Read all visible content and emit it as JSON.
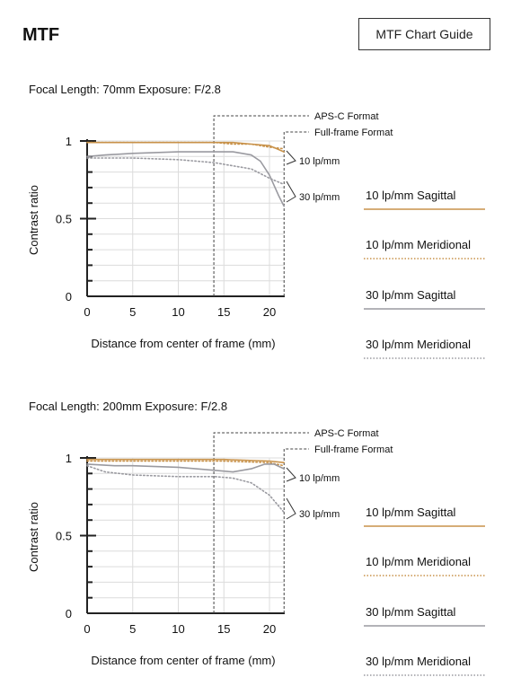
{
  "header": {
    "title": "MTF",
    "guide_button": "MTF Chart Guide"
  },
  "colors": {
    "sagittal10": "#c8924a",
    "meridional10": "#c8924a",
    "sagittal30": "#9a9aa0",
    "meridional30": "#9a9aa0"
  },
  "chart_data": [
    {
      "type": "line",
      "caption": "Focal Length: 70mm   Exposure: F/2.8",
      "xlabel": "Distance from center of frame (mm)",
      "ylabel": "Contrast ratio",
      "xlim": [
        0,
        21.6
      ],
      "ylim": [
        0,
        1
      ],
      "xticks": [
        "0",
        "5",
        "10",
        "15",
        "20"
      ],
      "yticks": [
        "0",
        "0.5",
        "1"
      ],
      "grid": true,
      "markers": [
        {
          "label": "APS-C Format",
          "x": 13.9
        },
        {
          "label": "Full-frame Format",
          "x": 21.6
        }
      ],
      "annotations": [
        "10 lp/mm",
        "30 lp/mm"
      ],
      "series": [
        {
          "name": "10 lp/mm Sagittal",
          "style": "solid",
          "color": "#c8924a",
          "x": [
            0,
            5,
            10,
            14,
            16,
            18,
            20,
            21.6
          ],
          "y": [
            0.99,
            0.99,
            0.99,
            0.99,
            0.99,
            0.98,
            0.97,
            0.93
          ]
        },
        {
          "name": "10 lp/mm Meridional",
          "style": "dotted",
          "color": "#c8924a",
          "x": [
            0,
            5,
            10,
            14,
            16,
            18,
            20,
            21.6
          ],
          "y": [
            0.99,
            0.99,
            0.99,
            0.99,
            0.98,
            0.98,
            0.96,
            0.95
          ]
        },
        {
          "name": "30 lp/mm Sagittal",
          "style": "solid",
          "color": "#9a9aa0",
          "x": [
            0,
            2,
            5,
            10,
            14,
            16,
            18,
            19,
            20,
            21,
            21.6
          ],
          "y": [
            0.9,
            0.91,
            0.92,
            0.93,
            0.93,
            0.93,
            0.91,
            0.87,
            0.78,
            0.65,
            0.58
          ]
        },
        {
          "name": "30 lp/mm Meridional",
          "style": "dotted",
          "color": "#9a9aa0",
          "x": [
            0,
            5,
            10,
            14,
            16,
            18,
            20,
            21.6
          ],
          "y": [
            0.89,
            0.89,
            0.88,
            0.86,
            0.84,
            0.82,
            0.76,
            0.72
          ]
        }
      ]
    },
    {
      "type": "line",
      "caption": "Focal Length: 200mm   Exposure: F/2.8",
      "xlabel": "Distance from center of frame (mm)",
      "ylabel": "Contrast ratio",
      "xlim": [
        0,
        21.6
      ],
      "ylim": [
        0,
        1
      ],
      "xticks": [
        "0",
        "5",
        "10",
        "15",
        "20"
      ],
      "yticks": [
        "0",
        "0.5",
        "1"
      ],
      "grid": true,
      "markers": [
        {
          "label": "APS-C Format",
          "x": 13.9
        },
        {
          "label": "Full-frame Format",
          "x": 21.6
        }
      ],
      "annotations": [
        "10 lp/mm",
        "30 lp/mm"
      ],
      "series": [
        {
          "name": "10 lp/mm Sagittal",
          "style": "solid",
          "color": "#c8924a",
          "x": [
            0,
            5,
            10,
            15,
            20,
            21.6
          ],
          "y": [
            0.99,
            0.99,
            0.99,
            0.99,
            0.98,
            0.97
          ]
        },
        {
          "name": "10 lp/mm Meridional",
          "style": "dotted",
          "color": "#c8924a",
          "x": [
            0,
            5,
            10,
            15,
            20,
            21.6
          ],
          "y": [
            0.98,
            0.98,
            0.98,
            0.98,
            0.97,
            0.95
          ]
        },
        {
          "name": "30 lp/mm Sagittal",
          "style": "solid",
          "color": "#9a9aa0",
          "x": [
            0,
            3,
            5,
            10,
            14,
            16,
            18,
            19.5,
            20.5,
            21.6
          ],
          "y": [
            0.96,
            0.95,
            0.95,
            0.94,
            0.92,
            0.91,
            0.93,
            0.96,
            0.96,
            0.93
          ]
        },
        {
          "name": "30 lp/mm Meridional",
          "style": "dotted",
          "color": "#9a9aa0",
          "x": [
            0,
            2,
            5,
            10,
            14,
            16,
            18,
            20,
            21.6
          ],
          "y": [
            0.95,
            0.91,
            0.89,
            0.88,
            0.88,
            0.87,
            0.84,
            0.76,
            0.65
          ]
        }
      ]
    }
  ]
}
